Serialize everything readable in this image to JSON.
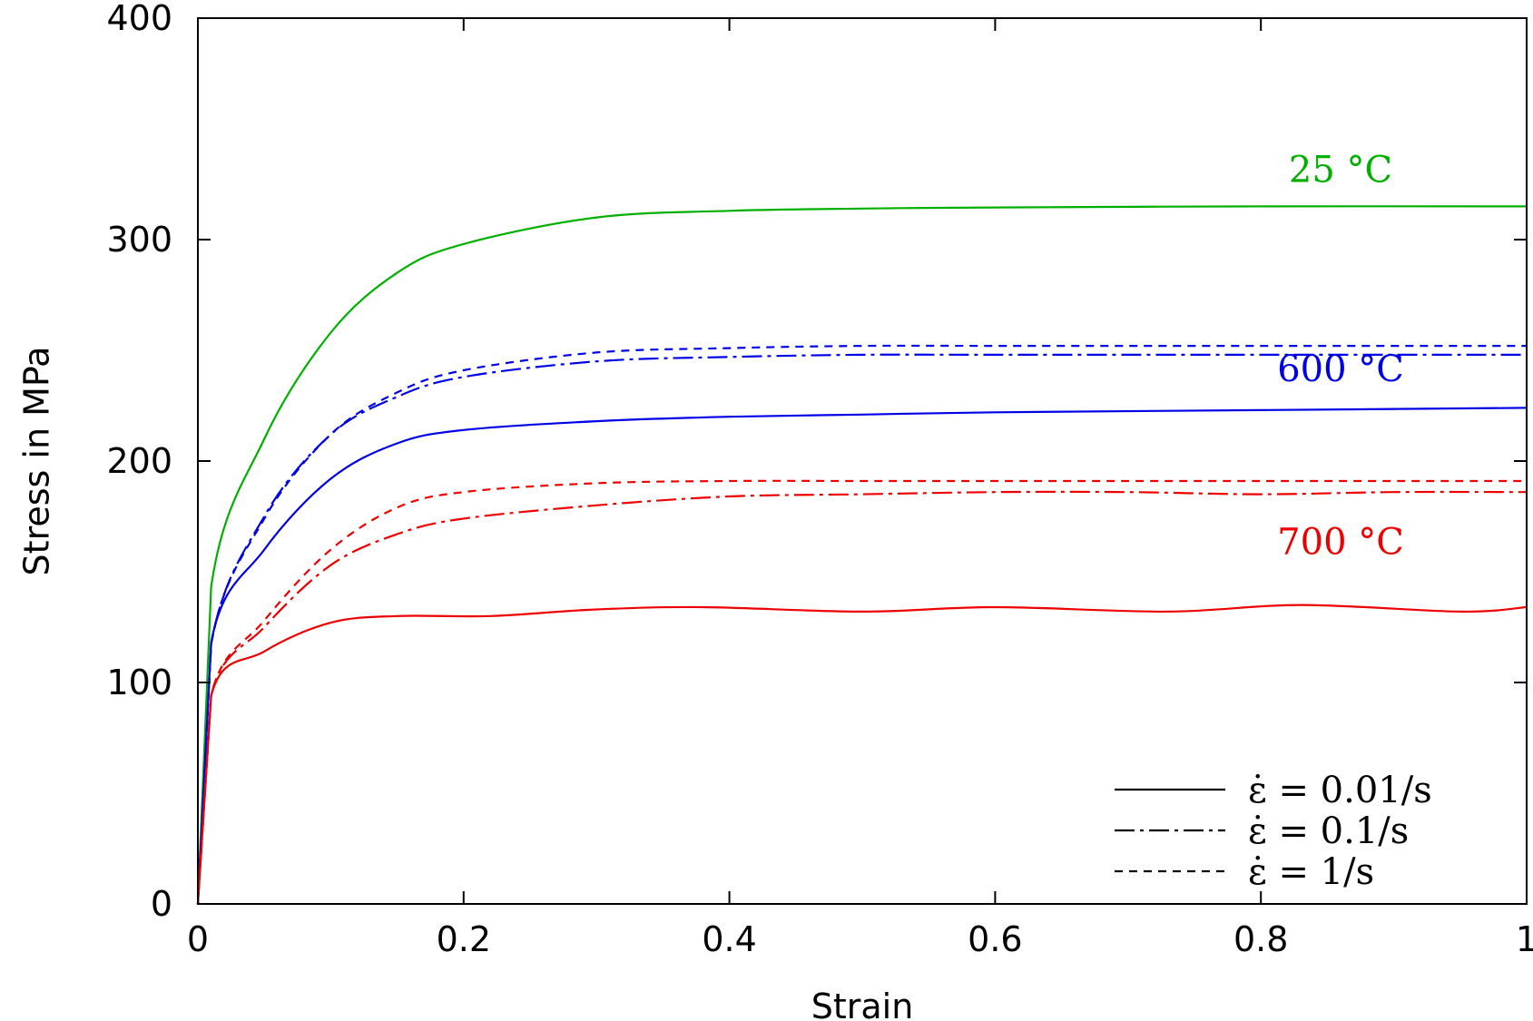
{
  "chart_data": {
    "type": "line",
    "xlabel": "Strain",
    "ylabel": "Stress in MPa",
    "xlim": [
      0,
      1
    ],
    "ylim": [
      0,
      400
    ],
    "x_ticks": [
      "0",
      "0.2",
      "0.4",
      "0.6",
      "0.8",
      "1"
    ],
    "y_ticks": [
      "0",
      "100",
      "200",
      "300",
      "400"
    ],
    "grid": false,
    "legend_placement": "bottom-right",
    "colors": {
      "green": "#00b000",
      "blue": "#0000e6",
      "red": "#ee0000"
    },
    "legend": [
      {
        "label": "ε̇ = 0.01/s",
        "style": "solid"
      },
      {
        "label": "ε̇ = 0.1/s",
        "style": "dashdot"
      },
      {
        "label": "ε̇ = 1/s",
        "style": "dashed"
      }
    ],
    "annotations": [
      {
        "text": "25 °C",
        "color": "green",
        "x": 0.86,
        "y": 326
      },
      {
        "text": "600 °C",
        "color": "blue",
        "x": 0.86,
        "y": 236
      },
      {
        "text": "700 °C",
        "color": "red",
        "x": 0.86,
        "y": 158
      }
    ],
    "series": [
      {
        "key": "25C-0.01",
        "color": "green",
        "style": "solid",
        "x": [
          0,
          0.01,
          0.05,
          0.1,
          0.15,
          0.2,
          0.3,
          0.4,
          0.5,
          0.6,
          0.8,
          1.0
        ],
        "y": [
          0,
          143,
          210,
          258,
          285,
          298,
          310,
          313,
          314,
          314.5,
          315,
          315
        ]
      },
      {
        "key": "600C-0.01",
        "color": "blue",
        "style": "solid",
        "x": [
          0,
          0.01,
          0.05,
          0.1,
          0.15,
          0.2,
          0.3,
          0.4,
          0.5,
          0.6,
          0.8,
          1.0
        ],
        "y": [
          0,
          118,
          160,
          192,
          208,
          214,
          218,
          220,
          221,
          222,
          223,
          224
        ]
      },
      {
        "key": "600C-0.1",
        "color": "blue",
        "style": "dashdot",
        "x": [
          0,
          0.01,
          0.05,
          0.1,
          0.15,
          0.2,
          0.3,
          0.4,
          0.5,
          0.6,
          0.8,
          1.0
        ],
        "y": [
          0,
          117,
          175,
          212,
          229,
          238,
          245,
          247,
          248,
          248,
          248,
          248
        ]
      },
      {
        "key": "600C-1",
        "color": "blue",
        "style": "dashed",
        "x": [
          0,
          0.01,
          0.05,
          0.1,
          0.15,
          0.2,
          0.3,
          0.4,
          0.5,
          0.6,
          0.8,
          1.0
        ],
        "y": [
          0,
          117,
          174,
          212,
          231,
          241,
          249,
          251,
          252,
          252,
          252,
          252
        ]
      },
      {
        "key": "700C-0.01",
        "color": "red",
        "style": "solid",
        "x": [
          0,
          0.01,
          0.05,
          0.1,
          0.15,
          0.22,
          0.3,
          0.38,
          0.5,
          0.6,
          0.73,
          0.83,
          0.95,
          1.0
        ],
        "y": [
          0,
          94,
          114,
          127,
          130,
          130,
          133,
          134,
          132,
          134,
          132,
          135,
          132,
          134
        ]
      },
      {
        "key": "700C-0.1",
        "color": "red",
        "style": "dashdot",
        "x": [
          0,
          0.01,
          0.05,
          0.1,
          0.15,
          0.2,
          0.3,
          0.4,
          0.5,
          0.6,
          0.7,
          0.8,
          0.9,
          1.0
        ],
        "y": [
          0,
          94,
          125,
          153,
          167,
          174,
          180,
          184,
          185,
          186,
          186,
          185,
          186,
          186
        ]
      },
      {
        "key": "700C-1",
        "color": "red",
        "style": "dashed",
        "x": [
          0,
          0.01,
          0.05,
          0.1,
          0.15,
          0.2,
          0.3,
          0.4,
          0.5,
          0.6,
          0.8,
          1.0
        ],
        "y": [
          0,
          94,
          128,
          160,
          179,
          186,
          190,
          191,
          191,
          191,
          191,
          191
        ]
      }
    ]
  }
}
